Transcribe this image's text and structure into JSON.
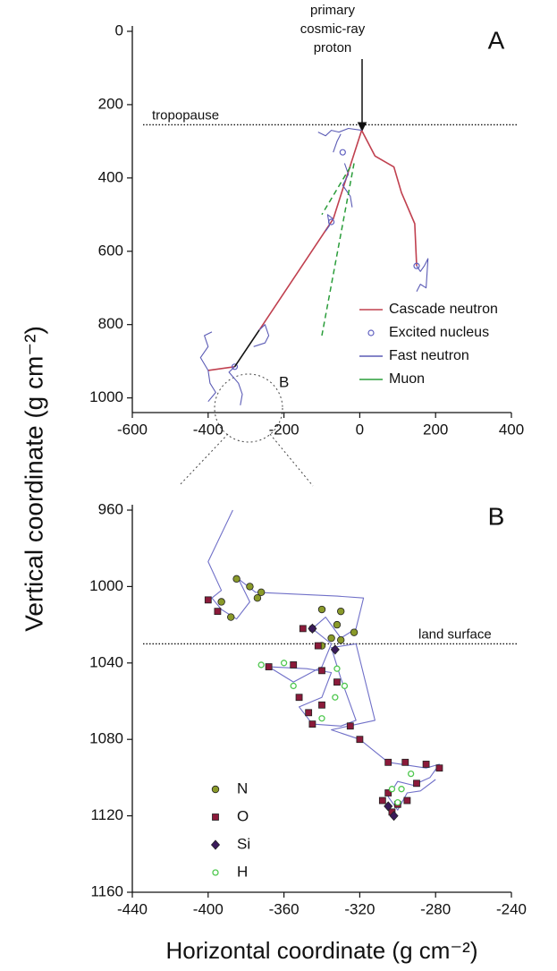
{
  "chart_data": [
    {
      "type": "line",
      "panel_label": "A",
      "inset_label": "B",
      "proton_label": [
        "primary",
        "cosmic-ray",
        "proton"
      ],
      "ylabel": "Vertical coordinate (g cm⁻²)",
      "hlines": [
        {
          "label": "tropopause",
          "value": 255
        }
      ],
      "xlim": [
        -600,
        400
      ],
      "xticks": [
        -600,
        -400,
        -200,
        0,
        200,
        400
      ],
      "ylim": [
        0,
        1040
      ],
      "yticks": [
        0,
        200,
        400,
        600,
        800,
        1000
      ],
      "y_inverted": true,
      "legend": "lower right",
      "series": [
        {
          "name": "Cascade neutron",
          "color": "#c0404f",
          "style": "line",
          "x": [
            5,
            40,
            90,
            110,
            145,
            150,
            null,
            5,
            -40,
            -70,
            -265,
            null,
            -330,
            -400
          ],
          "values": [
            270,
            340,
            370,
            440,
            525,
            640,
            null,
            270,
            415,
            512,
            815,
            null,
            915,
            925
          ]
        },
        {
          "name": "Excited nucleus",
          "color": "#6060c0",
          "style": "marker",
          "x": [
            -75,
            -45,
            150,
            -330
          ],
          "values": [
            520,
            330,
            640,
            915
          ]
        },
        {
          "name": "Fast neutron",
          "color": "#5b5bb5",
          "style": "line",
          "x": [
            5,
            -30,
            -55,
            -75,
            -90,
            -110,
            null,
            -50,
            -60,
            -70,
            null,
            -40,
            -30,
            -45,
            -25,
            -20,
            null,
            -70,
            -85,
            -80,
            -90,
            null,
            150,
            160,
            170,
            180,
            175,
            160,
            150,
            null,
            -400,
            -420,
            -400,
            -410,
            -390,
            null,
            -400,
            -395,
            -380,
            -400,
            null,
            -265,
            -250,
            -240,
            -250,
            -280,
            null,
            -330,
            -345,
            -320,
            -310,
            -315
          ],
          "values": [
            270,
            265,
            275,
            270,
            285,
            275,
            null,
            280,
            300,
            330,
            null,
            360,
            390,
            420,
            450,
            480,
            null,
            512,
            500,
            530,
            545,
            null,
            640,
            655,
            640,
            620,
            700,
            690,
            710,
            null,
            925,
            890,
            860,
            830,
            820,
            null,
            925,
            960,
            985,
            1010,
            null,
            815,
            800,
            830,
            850,
            860,
            null,
            915,
            930,
            960,
            990,
            1020
          ]
        },
        {
          "name": "Muon",
          "color": "#2a9d3a",
          "style": "dashed",
          "x": [
            -15,
            -100,
            null,
            -25,
            -100
          ],
          "values": [
            360,
            830,
            null,
            370,
            500
          ]
        },
        {
          "color": "#111111",
          "style": "line",
          "x": [
            -265,
            -330
          ],
          "values": [
            815,
            915
          ]
        }
      ]
    },
    {
      "type": "scatter",
      "panel_label": "B",
      "xlabel": "Horizontal coordinate (g cm⁻²)",
      "hlines": [
        {
          "label": "land surface",
          "value": 1030
        }
      ],
      "xlim": [
        -440,
        -240
      ],
      "xticks": [
        -440,
        -400,
        -360,
        -320,
        -280,
        -240
      ],
      "ylim": [
        960,
        1160
      ],
      "yticks": [
        960,
        1000,
        1040,
        1080,
        1120,
        1160
      ],
      "y_inverted": true,
      "legend": "lower left",
      "series": [
        {
          "color": "#7070c8",
          "style": "line",
          "x": [
            -387,
            -400,
            -393,
            -398,
            -393,
            -385,
            -378,
            -384,
            -375,
            -332,
            -318,
            -322,
            -330,
            -338,
            -345,
            -335,
            -340,
            -355,
            -368,
            -348,
            -335,
            -340,
            -352,
            -345,
            -330,
            -322,
            -330,
            -335,
            -322,
            -312,
            -335,
            -320,
            -305,
            -285,
            -278,
            -283,
            -292,
            -300,
            -305,
            -300,
            -295,
            -288,
            -280
          ],
          "values": [
            960,
            987,
            1002,
            1006,
            1012,
            1017,
            1008,
            996,
            1003,
            1005,
            1006,
            1022,
            1027,
            1016,
            1022,
            1030,
            1042,
            1050,
            1042,
            1043,
            1045,
            1058,
            1063,
            1072,
            1073,
            1070,
            1048,
            1032,
            1030,
            1070,
            1075,
            1080,
            1092,
            1095,
            1093,
            1100,
            1104,
            1102,
            1110,
            1117,
            1108,
            1107,
            1101
          ]
        },
        {
          "name": "N",
          "color": "#8a9a2a",
          "style": "circle",
          "x": [
            -385,
            -378,
            -372,
            -374,
            -393,
            -388,
            -340,
            -330,
            -332,
            -335,
            -323,
            -345,
            -340,
            -330
          ],
          "values": [
            996,
            1000,
            1003,
            1006,
            1008,
            1016,
            1012,
            1013,
            1020,
            1027,
            1024,
            1022,
            1031,
            1028
          ]
        },
        {
          "name": "O",
          "color": "#8b1a3a",
          "style": "square",
          "x": [
            -400,
            -395,
            -368,
            -355,
            -352,
            -347,
            -340,
            -345,
            -325,
            -320,
            -332,
            -340,
            -305,
            -296,
            -285,
            -278,
            -290,
            -305,
            -308,
            -300,
            -303,
            -295,
            -342,
            -350
          ],
          "values": [
            1007,
            1013,
            1042,
            1041,
            1058,
            1066,
            1062,
            1072,
            1073,
            1080,
            1050,
            1044,
            1092,
            1092,
            1093,
            1095,
            1103,
            1108,
            1112,
            1114,
            1118,
            1112,
            1031,
            1022
          ]
        },
        {
          "name": "Si",
          "color": "#3a1a5a",
          "style": "diamond",
          "x": [
            -305,
            -302,
            -345,
            -333
          ],
          "values": [
            1115,
            1120,
            1022,
            1033
          ]
        },
        {
          "name": "H",
          "color": "#4fc84f",
          "style": "open",
          "x": [
            -372,
            -360,
            -355,
            -332,
            -333,
            -328,
            -340,
            -303,
            -298,
            -293,
            -300
          ],
          "values": [
            1041,
            1040,
            1052,
            1043,
            1058,
            1052,
            1069,
            1106,
            1106,
            1098,
            1113
          ]
        }
      ]
    }
  ]
}
